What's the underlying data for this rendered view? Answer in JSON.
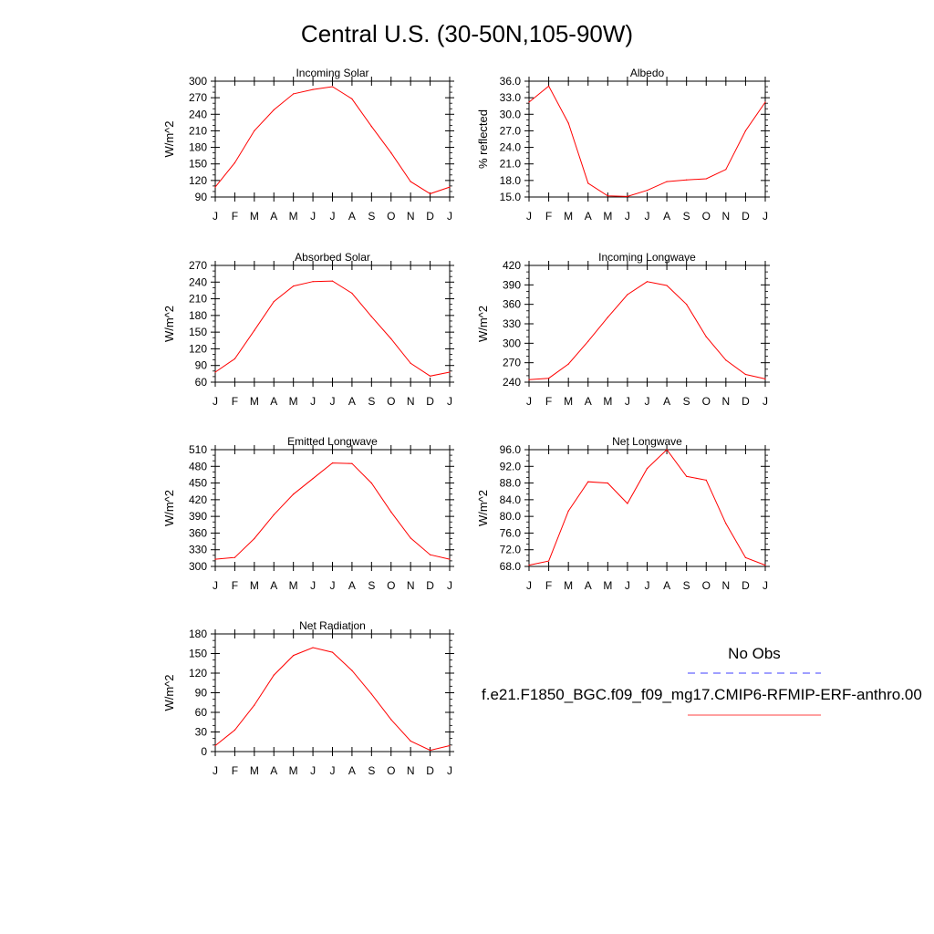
{
  "title": "Central U.S. (30-50N,105-90W)",
  "months": [
    "J",
    "F",
    "M",
    "A",
    "M",
    "J",
    "J",
    "A",
    "S",
    "O",
    "N",
    "D",
    "J"
  ],
  "legend": {
    "obs_label": "No Obs",
    "model_label": "f.e21.F1850_BGC.f09_f09_mg17.CMIP6-RFMIP-ERF-anthro.00",
    "obs_color": "#0000ff",
    "model_color": "#ff0000"
  },
  "chart_data": [
    {
      "type": "line",
      "title": "Incoming Solar",
      "ylabel": "W/m^2",
      "ylim": [
        90,
        300
      ],
      "yticks": [
        "90",
        "120",
        "150",
        "180",
        "210",
        "240",
        "270",
        "300"
      ],
      "categories": [
        "J",
        "F",
        "M",
        "A",
        "M",
        "J",
        "J",
        "A",
        "S",
        "O",
        "N",
        "D",
        "J"
      ],
      "series": [
        {
          "values": [
            108,
            152,
            210,
            248,
            277,
            285,
            290,
            268,
            218,
            170,
            118,
            96,
            108
          ]
        }
      ]
    },
    {
      "type": "line",
      "title": "Albedo",
      "ylabel": "% reflected",
      "ylim": [
        15.0,
        36.0
      ],
      "yticks": [
        "15.0",
        "18.0",
        "21.0",
        "24.0",
        "27.0",
        "30.0",
        "33.0",
        "36.0"
      ],
      "categories": [
        "J",
        "F",
        "M",
        "A",
        "M",
        "J",
        "J",
        "A",
        "S",
        "O",
        "N",
        "D",
        "J"
      ],
      "series": [
        {
          "values": [
            32.2,
            35.1,
            28.4,
            17.5,
            15.2,
            15.1,
            16.2,
            17.8,
            18.1,
            18.3,
            20.0,
            27.0,
            32.2
          ]
        }
      ]
    },
    {
      "type": "line",
      "title": "Absorbed Solar",
      "ylabel": "W/m^2",
      "ylim": [
        60,
        270
      ],
      "yticks": [
        "60",
        "90",
        "120",
        "150",
        "180",
        "210",
        "240",
        "270"
      ],
      "categories": [
        "J",
        "F",
        "M",
        "A",
        "M",
        "J",
        "J",
        "A",
        "S",
        "O",
        "N",
        "D",
        "J"
      ],
      "series": [
        {
          "values": [
            78,
            102,
            153,
            205,
            233,
            241,
            242,
            220,
            178,
            138,
            94,
            71,
            78
          ]
        }
      ]
    },
    {
      "type": "line",
      "title": "Incoming Longwave",
      "ylabel": "W/m^2",
      "ylim": [
        240,
        420
      ],
      "yticks": [
        "240",
        "270",
        "300",
        "330",
        "360",
        "390",
        "420"
      ],
      "categories": [
        "J",
        "F",
        "M",
        "A",
        "M",
        "J",
        "J",
        "A",
        "S",
        "O",
        "N",
        "D",
        "J"
      ],
      "series": [
        {
          "values": [
            244,
            246,
            268,
            303,
            340,
            375,
            395,
            389,
            360,
            310,
            274,
            252,
            245
          ]
        }
      ]
    },
    {
      "type": "line",
      "title": "Emitted Longwave",
      "ylabel": "W/m^2",
      "ylim": [
        300,
        510
      ],
      "yticks": [
        "300",
        "330",
        "360",
        "390",
        "420",
        "450",
        "480",
        "510"
      ],
      "categories": [
        "J",
        "F",
        "M",
        "A",
        "M",
        "J",
        "J",
        "A",
        "S",
        "O",
        "N",
        "D",
        "J"
      ],
      "series": [
        {
          "values": [
            313,
            316,
            350,
            393,
            430,
            458,
            486,
            485,
            450,
            398,
            351,
            321,
            313
          ]
        }
      ]
    },
    {
      "type": "line",
      "title": "Net Longwave",
      "ylabel": "W/m^2",
      "ylim": [
        68.0,
        96.0
      ],
      "yticks": [
        "68.0",
        "72.0",
        "76.0",
        "80.0",
        "84.0",
        "88.0",
        "92.0",
        "96.0"
      ],
      "categories": [
        "J",
        "F",
        "M",
        "A",
        "M",
        "J",
        "J",
        "A",
        "S",
        "O",
        "N",
        "D",
        "J"
      ],
      "series": [
        {
          "values": [
            68.3,
            69.3,
            81.3,
            88.3,
            88.0,
            83.1,
            91.5,
            96.0,
            89.6,
            88.7,
            78.3,
            70.1,
            68.3
          ]
        }
      ]
    },
    {
      "type": "line",
      "title": "Net Radiation",
      "ylabel": "W/m^2",
      "ylim": [
        0,
        180
      ],
      "yticks": [
        "0",
        "30",
        "60",
        "90",
        "120",
        "150",
        "180"
      ],
      "categories": [
        "J",
        "F",
        "M",
        "A",
        "M",
        "J",
        "J",
        "A",
        "S",
        "O",
        "N",
        "D",
        "J"
      ],
      "series": [
        {
          "values": [
            9,
            33,
            71,
            117,
            147,
            159,
            152,
            124,
            88,
            49,
            16,
            2,
            9
          ]
        }
      ]
    }
  ]
}
